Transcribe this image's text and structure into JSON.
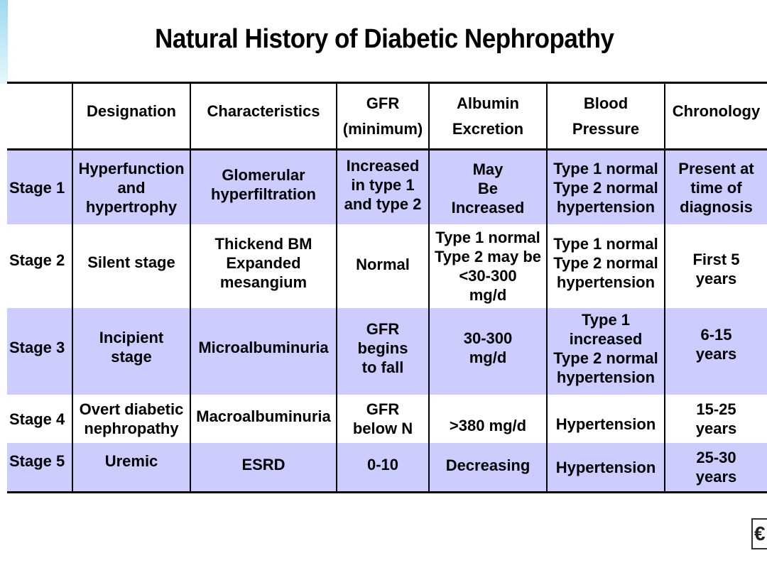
{
  "title": "Natural History of Diabetic Nephropathy",
  "colors": {
    "band": "#ccccff",
    "line": "#000000",
    "deco": "#9fd8ef"
  },
  "header": {
    "designation": "Designation",
    "characteristics": "Characteristics",
    "gfr": "GFR\n(minimum)",
    "albumin": "Albumin\nExcretion",
    "bp": "Blood\nPressure",
    "chronology": "Chronology"
  },
  "rows": [
    {
      "stage": "Stage 1",
      "designation": "Hyperfunction\nand\nhypertrophy",
      "characteristics": "Glomerular\nhyperfiltration",
      "gfr": "Increased\nin type 1\nand type 2",
      "albumin": "May\nBe\nIncreased",
      "bp": "Type 1 normal\nType 2 normal\nhypertension",
      "chronology": "Present at\ntime of\ndiagnosis"
    },
    {
      "stage": "Stage 2",
      "designation": "Silent stage",
      "characteristics": "Thickend BM\nExpanded\nmesangium",
      "gfr": "Normal",
      "albumin": "Type 1 normal\nType 2 may be\n<30-300\nmg/d",
      "bp": "Type 1 normal\nType 2 normal\nhypertension",
      "chronology": "First 5\nyears"
    },
    {
      "stage": "Stage 3",
      "designation": "Incipient\nstage",
      "characteristics": "Microalbuminuria",
      "gfr": "GFR\nbegins\nto fall",
      "albumin": "30-300\nmg/d",
      "bp": "Type 1\nincreased\nType 2 normal\nhypertension",
      "chronology": "6-15\nyears"
    },
    {
      "stage": "Stage 4",
      "designation": "Overt diabetic\nnephropathy",
      "characteristics": "Macroalbuminuria",
      "gfr": "GFR\nbelow N",
      "albumin": ">380 mg/d",
      "bp": "Hypertension",
      "chronology": "15-25\nyears"
    },
    {
      "stage": "Stage 5",
      "designation": "Uremic",
      "characteristics": "ESRD",
      "gfr": "0-10",
      "albumin": "Decreasing",
      "bp": "Hypertension",
      "chronology": "25-30\nyears"
    }
  ]
}
